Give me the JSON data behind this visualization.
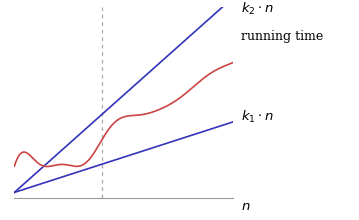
{
  "background_color": "#ffffff",
  "xlim": [
    0,
    10
  ],
  "ylim": [
    -0.3,
    10
  ],
  "k2_slope": 1.05,
  "k1_slope": 0.38,
  "dashed_x": 4.0,
  "line_color_blue": "#3333bb",
  "line_color_red": "#cc4444",
  "line_color_dashed": "#aaaaaa",
  "label_fontsize": 9.5,
  "fig_width": 3.59,
  "fig_height": 2.2,
  "fig_dpi": 100
}
